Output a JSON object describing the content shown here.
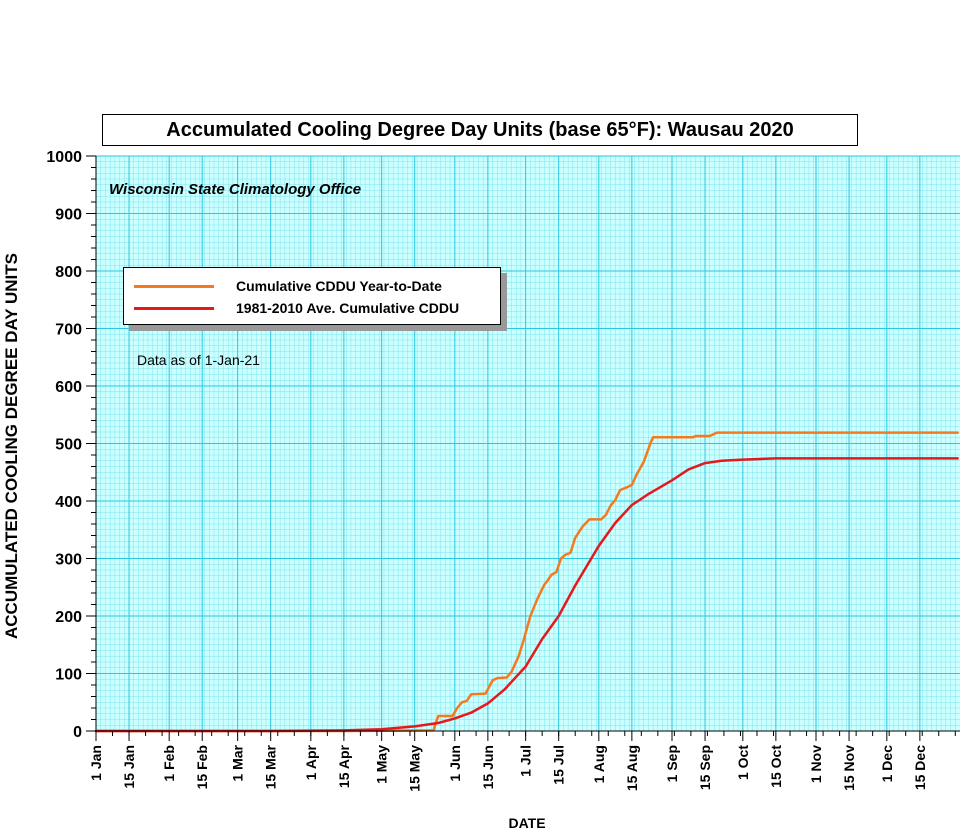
{
  "chart_data": {
    "type": "line",
    "title": "Accumulated Cooling Degree Day Units (base 65°F): Wausau 2020",
    "subtitle": "Wisconsin State Climatology Office",
    "annotation": "Data as of 1-Jan-21",
    "xlabel": "DATE",
    "ylabel": "ACCUMULATED COOLING DEGREE DAY UNITS",
    "ylim": [
      0,
      1000
    ],
    "yticks": [
      0,
      100,
      200,
      300,
      400,
      500,
      600,
      700,
      800,
      900,
      1000
    ],
    "x_date_range": [
      "2020-01-01",
      "2021-01-01"
    ],
    "xticks": [
      {
        "date": "2020-01-01",
        "label": "1 Jan"
      },
      {
        "date": "2020-01-15",
        "label": "15 Jan"
      },
      {
        "date": "2020-02-01",
        "label": "1 Feb"
      },
      {
        "date": "2020-02-15",
        "label": "15 Feb"
      },
      {
        "date": "2020-03-01",
        "label": "1 Mar"
      },
      {
        "date": "2020-03-15",
        "label": "15 Mar"
      },
      {
        "date": "2020-04-01",
        "label": "1 Apr"
      },
      {
        "date": "2020-04-15",
        "label": "15 Apr"
      },
      {
        "date": "2020-05-01",
        "label": "1 May"
      },
      {
        "date": "2020-05-15",
        "label": "15 May"
      },
      {
        "date": "2020-06-01",
        "label": "1 Jun"
      },
      {
        "date": "2020-06-15",
        "label": "15 Jun"
      },
      {
        "date": "2020-07-01",
        "label": "1 Jul"
      },
      {
        "date": "2020-07-15",
        "label": "15 Jul"
      },
      {
        "date": "2020-08-01",
        "label": "1 Aug"
      },
      {
        "date": "2020-08-15",
        "label": "15 Aug"
      },
      {
        "date": "2020-09-01",
        "label": "1 Sep"
      },
      {
        "date": "2020-09-15",
        "label": "15 Sep"
      },
      {
        "date": "2020-10-01",
        "label": "1 Oct"
      },
      {
        "date": "2020-10-15",
        "label": "15 Oct"
      },
      {
        "date": "2020-11-01",
        "label": "1 Nov"
      },
      {
        "date": "2020-11-15",
        "label": "15 Nov"
      },
      {
        "date": "2020-12-01",
        "label": "1 Dec"
      },
      {
        "date": "2020-12-15",
        "label": "15 Dec"
      }
    ],
    "grid": true,
    "legend_position": "upper-left",
    "series": [
      {
        "name": "Cumulative CDDU Year-to-Date",
        "color": "#F47A1F",
        "points": [
          [
            "2020-01-01",
            0
          ],
          [
            "2020-04-15",
            0
          ],
          [
            "2020-05-23",
            1
          ],
          [
            "2020-05-24",
            15
          ],
          [
            "2020-05-25",
            26
          ],
          [
            "2020-05-31",
            26
          ],
          [
            "2020-06-02",
            40
          ],
          [
            "2020-06-04",
            50
          ],
          [
            "2020-06-06",
            52
          ],
          [
            "2020-06-08",
            64
          ],
          [
            "2020-06-14",
            65
          ],
          [
            "2020-06-17",
            88
          ],
          [
            "2020-06-19",
            92
          ],
          [
            "2020-06-23",
            93
          ],
          [
            "2020-06-25",
            103
          ],
          [
            "2020-06-28",
            130
          ],
          [
            "2020-06-30",
            156
          ],
          [
            "2020-07-03",
            200
          ],
          [
            "2020-07-06",
            230
          ],
          [
            "2020-07-09",
            255
          ],
          [
            "2020-07-10",
            260
          ],
          [
            "2020-07-12",
            272
          ],
          [
            "2020-07-14",
            276
          ],
          [
            "2020-07-16",
            300
          ],
          [
            "2020-07-18",
            307
          ],
          [
            "2020-07-20",
            310
          ],
          [
            "2020-07-22",
            336
          ],
          [
            "2020-07-25",
            355
          ],
          [
            "2020-07-28",
            368
          ],
          [
            "2020-08-02",
            368
          ],
          [
            "2020-08-04",
            376
          ],
          [
            "2020-08-06",
            392
          ],
          [
            "2020-08-08",
            402
          ],
          [
            "2020-08-10",
            419
          ],
          [
            "2020-08-13",
            424
          ],
          [
            "2020-08-15",
            428
          ],
          [
            "2020-08-17",
            446
          ],
          [
            "2020-08-20",
            468
          ],
          [
            "2020-08-23",
            502
          ],
          [
            "2020-08-24",
            511
          ],
          [
            "2020-09-10",
            511
          ],
          [
            "2020-09-11",
            513
          ],
          [
            "2020-09-17",
            513
          ],
          [
            "2020-09-20",
            519
          ],
          [
            "2020-12-31",
            519
          ]
        ]
      },
      {
        "name": "1981-2010 Ave. Cumulative CDDU",
        "color": "#E3191C",
        "points": [
          [
            "2020-01-01",
            0
          ],
          [
            "2020-03-15",
            0
          ],
          [
            "2020-04-15",
            1
          ],
          [
            "2020-05-01",
            3
          ],
          [
            "2020-05-15",
            8
          ],
          [
            "2020-05-25",
            14
          ],
          [
            "2020-06-01",
            22
          ],
          [
            "2020-06-08",
            32
          ],
          [
            "2020-06-15",
            48
          ],
          [
            "2020-06-22",
            72
          ],
          [
            "2020-07-01",
            112
          ],
          [
            "2020-07-08",
            160
          ],
          [
            "2020-07-15",
            200
          ],
          [
            "2020-07-22",
            253
          ],
          [
            "2020-08-01",
            322
          ],
          [
            "2020-08-08",
            362
          ],
          [
            "2020-08-15",
            393
          ],
          [
            "2020-08-22",
            412
          ],
          [
            "2020-09-01",
            436
          ],
          [
            "2020-09-08",
            455
          ],
          [
            "2020-09-15",
            466
          ],
          [
            "2020-09-22",
            470
          ],
          [
            "2020-10-01",
            472
          ],
          [
            "2020-10-15",
            474
          ],
          [
            "2020-12-31",
            474
          ]
        ]
      }
    ]
  },
  "colors": {
    "plot_background": "#CCFFFF",
    "grid_major": "#2EC6E0",
    "grid_minor": "#7EE3F0"
  }
}
